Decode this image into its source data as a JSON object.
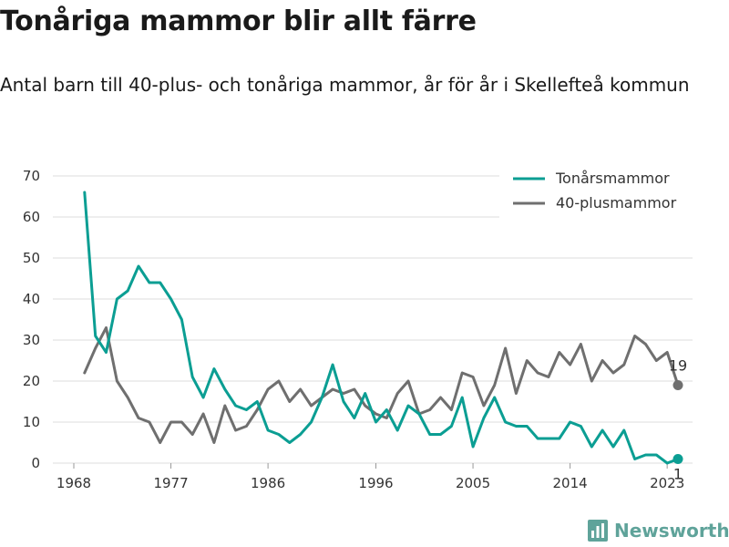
{
  "title": "Tonåriga mammor blir allt färre",
  "subtitle": "Antal barn till 40-plus- och tonåriga mammor, år för år i Skellefteå kommun",
  "brand": "Newsworthy",
  "colors": {
    "teen": "#0b9e93",
    "plus40": "#6f6f6f",
    "brand": "#5fa39a"
  },
  "chart_data": {
    "type": "line",
    "x": [
      1969,
      1970,
      1971,
      1972,
      1973,
      1974,
      1975,
      1976,
      1977,
      1978,
      1979,
      1980,
      1981,
      1982,
      1983,
      1984,
      1985,
      1986,
      1987,
      1988,
      1989,
      1990,
      1991,
      1992,
      1993,
      1994,
      1995,
      1996,
      1997,
      1998,
      1999,
      2000,
      2001,
      2002,
      2003,
      2004,
      2005,
      2006,
      2007,
      2008,
      2009,
      2010,
      2011,
      2012,
      2013,
      2014,
      2015,
      2016,
      2017,
      2018,
      2019,
      2020,
      2021,
      2022,
      2023,
      2024
    ],
    "series": [
      {
        "name": "Tonårsmammor",
        "values": [
          66,
          31,
          27,
          40,
          42,
          48,
          44,
          44,
          40,
          35,
          21,
          16,
          23,
          18,
          14,
          13,
          15,
          8,
          7,
          5,
          7,
          10,
          16,
          24,
          15,
          11,
          17,
          10,
          13,
          8,
          14,
          12,
          7,
          7,
          9,
          16,
          4,
          11,
          16,
          10,
          9,
          9,
          6,
          6,
          6,
          10,
          9,
          4,
          8,
          4,
          8,
          1,
          2,
          2,
          0,
          1
        ]
      },
      {
        "name": "40-plusmammor",
        "values": [
          22,
          28,
          33,
          20,
          16,
          11,
          10,
          5,
          10,
          10,
          7,
          12,
          5,
          14,
          8,
          9,
          13,
          18,
          20,
          15,
          18,
          14,
          16,
          18,
          17,
          18,
          14,
          12,
          11,
          17,
          20,
          12,
          13,
          16,
          13,
          22,
          21,
          14,
          19,
          28,
          17,
          25,
          22,
          21,
          27,
          24,
          29,
          20,
          25,
          22,
          24,
          31,
          29,
          25,
          27,
          19
        ]
      }
    ],
    "end_labels": [
      "1",
      "19"
    ],
    "xticks": [
      "1968",
      "1977",
      "1986",
      "1996",
      "2005",
      "2014",
      "2023"
    ],
    "yticks": [
      "0",
      "10",
      "20",
      "30",
      "40",
      "50",
      "60",
      "70"
    ],
    "xlim": [
      1968,
      2024
    ],
    "ylim": [
      0,
      70
    ],
    "grid": true,
    "legend_position": "top-right"
  }
}
